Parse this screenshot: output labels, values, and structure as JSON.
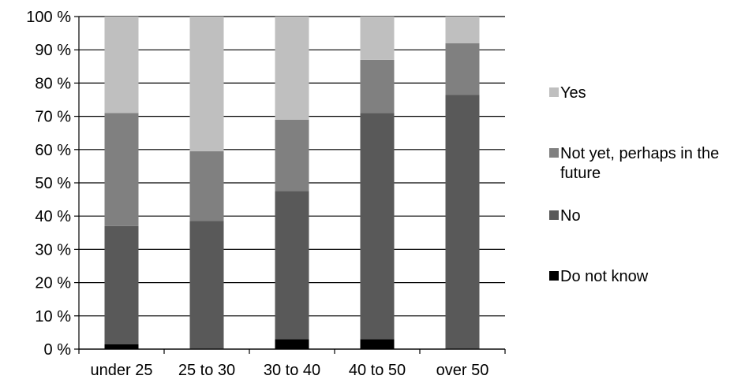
{
  "chart_data": {
    "type": "bar",
    "stacked": true,
    "percent": true,
    "categories": [
      "under 25",
      "25 to 30",
      "30 to 40",
      "40 to 50",
      "over 50"
    ],
    "series": [
      {
        "name": "Do not know",
        "color": "#000000",
        "values": [
          1.5,
          0,
          3,
          3,
          0
        ]
      },
      {
        "name": "No",
        "color": "#595959",
        "values": [
          35.5,
          38.5,
          44.5,
          68,
          76.5
        ]
      },
      {
        "name": "Not yet, perhaps in the future",
        "color": "#808080",
        "values": [
          34,
          21,
          21.5,
          16,
          15.5
        ]
      },
      {
        "name": "Yes",
        "color": "#bfbfbf",
        "values": [
          29,
          40.5,
          31,
          13,
          8
        ]
      }
    ],
    "ylim": [
      0,
      100
    ],
    "yticks": [
      "0 %",
      "10 %",
      "20 %",
      "30 %",
      "40 %",
      "50 %",
      "60 %",
      "70 %",
      "80 %",
      "90 %",
      "100 %"
    ],
    "grid": true,
    "legend_position": "right",
    "legend_order": [
      "Yes",
      "Not yet, perhaps in the future",
      "No",
      "Do not know"
    ]
  }
}
